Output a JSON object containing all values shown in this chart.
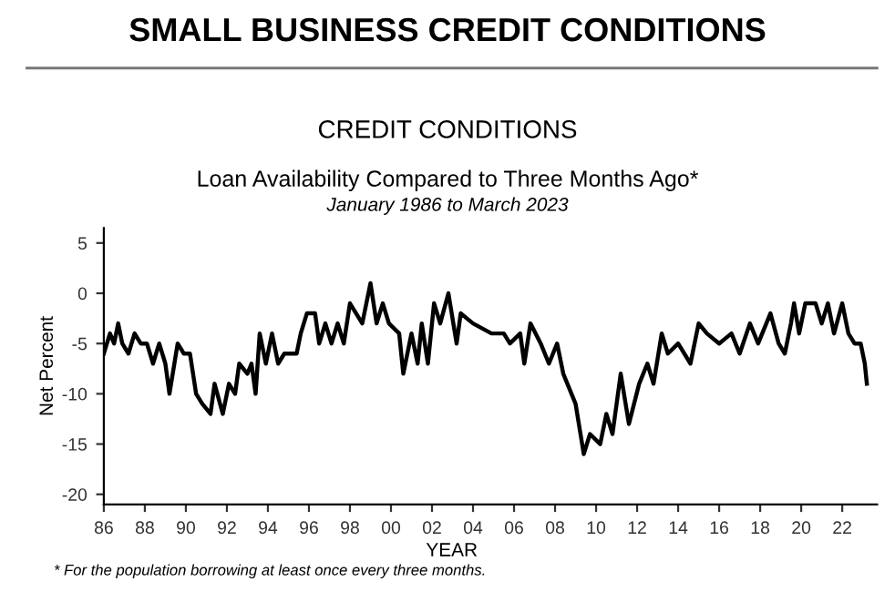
{
  "chart_data": {
    "type": "line",
    "title": "SMALL BUSINESS CREDIT CONDITIONS",
    "subtitle": "CREDIT CONDITIONS",
    "annotations": [
      "Loan Availability Compared to Three Months Ago*",
      "January 1986 to March 2023",
      "* For the population borrowing at least once every three months."
    ],
    "xlabel": "YEAR",
    "ylabel": "Net Percent",
    "x": [
      1986.0,
      1986.3,
      1986.5,
      1986.7,
      1986.9,
      1987.2,
      1987.5,
      1987.8,
      1988.1,
      1988.4,
      1988.7,
      1989.0,
      1989.2,
      1989.6,
      1989.9,
      1990.2,
      1990.5,
      1990.8,
      1991.2,
      1991.4,
      1991.8,
      1992.1,
      1992.4,
      1992.6,
      1993.0,
      1993.2,
      1993.4,
      1993.6,
      1993.9,
      1994.2,
      1994.5,
      1994.8,
      1995.4,
      1995.6,
      1995.9,
      1996.3,
      1996.5,
      1996.8,
      1997.1,
      1997.4,
      1997.7,
      1998.0,
      1998.3,
      1998.6,
      1999.0,
      1999.3,
      1999.6,
      1999.9,
      2000.4,
      2000.6,
      2001.0,
      2001.3,
      2001.5,
      2001.8,
      2002.1,
      2002.4,
      2002.8,
      2003.2,
      2003.4,
      2004.0,
      2004.9,
      2005.5,
      2005.8,
      2006.3,
      2006.5,
      2006.8,
      2007.3,
      2007.7,
      2008.1,
      2008.4,
      2009.0,
      2009.4,
      2009.7,
      2010.2,
      2010.5,
      2010.8,
      2011.2,
      2011.6,
      2012.1,
      2012.5,
      2012.8,
      2013.2,
      2013.5,
      2014.0,
      2014.6,
      2015.0,
      2015.4,
      2016.0,
      2016.6,
      2017.0,
      2017.5,
      2017.9,
      2018.5,
      2018.9,
      2019.2,
      2019.5,
      2019.65,
      2019.9,
      2020.2,
      2020.7,
      2021.0,
      2021.3,
      2021.6,
      2022.0,
      2022.3,
      2022.6,
      2022.9,
      2023.1,
      2023.2
    ],
    "series": [
      {
        "color": "#000000",
        "values": [
          -6,
          -4,
          -5,
          -3,
          -5,
          -6,
          -4,
          -5,
          -5,
          -7,
          -5,
          -7,
          -10,
          -5,
          -6,
          -6,
          -10,
          -11,
          -12,
          -9,
          -12,
          -9,
          -10,
          -7,
          -8,
          -7,
          -10,
          -4,
          -7,
          -4,
          -7,
          -6,
          -6,
          -4,
          -2,
          -2,
          -5,
          -3,
          -5,
          -3,
          -5,
          -1,
          -2,
          -3,
          1,
          -3,
          -1,
          -3,
          -4,
          -8,
          -4,
          -7,
          -3,
          -7,
          -1,
          -3,
          0,
          -5,
          -2,
          -3,
          -4,
          -4,
          -5,
          -4,
          -7,
          -3,
          -5,
          -7,
          -5,
          -8,
          -11,
          -16,
          -14,
          -15,
          -12,
          -14,
          -8,
          -13,
          -9,
          -7,
          -9,
          -4,
          -6,
          -5,
          -7,
          -3,
          -4,
          -5,
          -4,
          -6,
          -3,
          -5,
          -2,
          -5,
          -6,
          -3,
          -1,
          -4,
          -1,
          -1,
          -3,
          -1,
          -4,
          -1,
          -4,
          -5,
          -5,
          -7,
          -9
        ]
      }
    ],
    "xlim": [
      1986,
      2023.7
    ],
    "ylim": [
      -21,
      6.5
    ],
    "xticks": [
      {
        "value": 1986,
        "label": "86"
      },
      {
        "value": 1988,
        "label": "88"
      },
      {
        "value": 1990,
        "label": "90"
      },
      {
        "value": 1992,
        "label": "92"
      },
      {
        "value": 1994,
        "label": "94"
      },
      {
        "value": 1996,
        "label": "96"
      },
      {
        "value": 1998,
        "label": "98"
      },
      {
        "value": 2000,
        "label": "00"
      },
      {
        "value": 2002,
        "label": "02"
      },
      {
        "value": 2004,
        "label": "04"
      },
      {
        "value": 2006,
        "label": "06"
      },
      {
        "value": 2008,
        "label": "08"
      },
      {
        "value": 2010,
        "label": "10"
      },
      {
        "value": 2012,
        "label": "12"
      },
      {
        "value": 2014,
        "label": "14"
      },
      {
        "value": 2016,
        "label": "16"
      },
      {
        "value": 2018,
        "label": "18"
      },
      {
        "value": 2020,
        "label": "20"
      },
      {
        "value": 2022,
        "label": "22"
      }
    ],
    "yticks": [
      5,
      0,
      -5,
      -10,
      -15,
      -20
    ],
    "grid": false,
    "legend": false,
    "marker": "none",
    "line_style": "solid"
  }
}
